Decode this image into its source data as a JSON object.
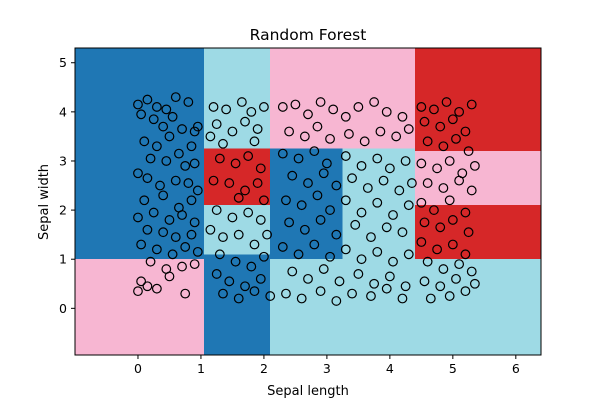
{
  "chart_data": {
    "type": "scatter",
    "title": "Random Forest",
    "xlabel": "Sepal length",
    "ylabel": "Sepal width",
    "xlim": [
      -1.0,
      6.4
    ],
    "ylim": [
      -0.95,
      5.3
    ],
    "xticks": [
      0,
      1,
      2,
      3,
      4,
      5,
      6
    ],
    "yticks": [
      0,
      1,
      2,
      3,
      4,
      5
    ],
    "grid": false,
    "legend": "none",
    "marker": "open-circle",
    "colors": {
      "blue": "#1f77b4",
      "cyan": "#9edae5",
      "pink": "#f7b6d2",
      "red": "#d62728",
      "marker_edge": "#000000"
    },
    "regions": [
      {
        "x": [
          -1.0,
          1.05
        ],
        "y": [
          1.0,
          5.3
        ],
        "color": "blue"
      },
      {
        "x": [
          -1.0,
          1.05
        ],
        "y": [
          -0.95,
          1.0
        ],
        "color": "pink"
      },
      {
        "x": [
          1.05,
          2.1
        ],
        "y": [
          3.25,
          5.3
        ],
        "color": "cyan"
      },
      {
        "x": [
          1.05,
          2.1
        ],
        "y": [
          2.1,
          3.25
        ],
        "color": "red"
      },
      {
        "x": [
          1.05,
          2.1
        ],
        "y": [
          1.1,
          2.1
        ],
        "color": "cyan"
      },
      {
        "x": [
          1.05,
          2.1
        ],
        "y": [
          -0.95,
          1.1
        ],
        "color": "blue"
      },
      {
        "x": [
          2.1,
          4.4
        ],
        "y": [
          3.25,
          5.3
        ],
        "color": "pink"
      },
      {
        "x": [
          2.1,
          3.25
        ],
        "y": [
          1.0,
          3.25
        ],
        "color": "blue"
      },
      {
        "x": [
          3.25,
          4.4
        ],
        "y": [
          1.0,
          3.25
        ],
        "color": "cyan"
      },
      {
        "x": [
          2.1,
          4.4
        ],
        "y": [
          -0.95,
          1.0
        ],
        "color": "cyan"
      },
      {
        "x": [
          4.4,
          6.4
        ],
        "y": [
          3.2,
          5.3
        ],
        "color": "red"
      },
      {
        "x": [
          4.4,
          6.4
        ],
        "y": [
          2.1,
          3.2
        ],
        "color": "pink"
      },
      {
        "x": [
          4.4,
          6.4
        ],
        "y": [
          1.0,
          2.1
        ],
        "color": "red"
      },
      {
        "x": [
          4.4,
          6.4
        ],
        "y": [
          -0.95,
          1.0
        ],
        "color": "cyan"
      }
    ],
    "points": [
      [
        0.0,
        4.15
      ],
      [
        0.15,
        4.25
      ],
      [
        0.3,
        4.1
      ],
      [
        0.45,
        4.05
      ],
      [
        0.6,
        4.3
      ],
      [
        0.8,
        4.2
      ],
      [
        0.05,
        3.95
      ],
      [
        0.25,
        3.85
      ],
      [
        0.4,
        3.7
      ],
      [
        0.55,
        3.9
      ],
      [
        0.7,
        3.65
      ],
      [
        0.9,
        3.6
      ],
      [
        0.1,
        3.4
      ],
      [
        0.3,
        3.3
      ],
      [
        0.5,
        3.5
      ],
      [
        0.65,
        3.15
      ],
      [
        0.85,
        3.3
      ],
      [
        0.95,
        3.7
      ],
      [
        0.2,
        3.05
      ],
      [
        0.45,
        3.0
      ],
      [
        0.75,
        2.9
      ],
      [
        0.9,
        2.95
      ],
      [
        0.0,
        2.75
      ],
      [
        0.15,
        2.65
      ],
      [
        0.35,
        2.5
      ],
      [
        0.6,
        2.6
      ],
      [
        0.8,
        2.55
      ],
      [
        0.95,
        2.4
      ],
      [
        0.1,
        2.2
      ],
      [
        0.4,
        2.3
      ],
      [
        0.65,
        2.05
      ],
      [
        0.85,
        2.2
      ],
      [
        0.0,
        1.85
      ],
      [
        0.25,
        1.95
      ],
      [
        0.5,
        1.8
      ],
      [
        0.7,
        1.9
      ],
      [
        0.9,
        1.75
      ],
      [
        0.15,
        1.6
      ],
      [
        0.4,
        1.55
      ],
      [
        0.6,
        1.45
      ],
      [
        0.85,
        1.5
      ],
      [
        0.05,
        1.3
      ],
      [
        0.3,
        1.2
      ],
      [
        0.55,
        1.1
      ],
      [
        0.75,
        1.25
      ],
      [
        0.95,
        1.15
      ],
      [
        0.2,
        0.95
      ],
      [
        0.45,
        0.8
      ],
      [
        0.7,
        0.85
      ],
      [
        0.9,
        0.9
      ],
      [
        0.05,
        0.55
      ],
      [
        0.3,
        0.4
      ],
      [
        0.5,
        0.65
      ],
      [
        0.75,
        0.3
      ],
      [
        0.0,
        0.35
      ],
      [
        0.15,
        0.45
      ],
      [
        1.2,
        4.1
      ],
      [
        1.4,
        4.05
      ],
      [
        1.65,
        4.2
      ],
      [
        1.8,
        4.0
      ],
      [
        2.0,
        4.1
      ],
      [
        1.25,
        3.75
      ],
      [
        1.5,
        3.6
      ],
      [
        1.7,
        3.8
      ],
      [
        1.9,
        3.65
      ],
      [
        1.15,
        3.5
      ],
      [
        1.35,
        3.35
      ],
      [
        1.85,
        3.4
      ],
      [
        1.3,
        3.05
      ],
      [
        1.55,
        2.95
      ],
      [
        1.75,
        3.1
      ],
      [
        1.95,
        2.85
      ],
      [
        1.2,
        2.6
      ],
      [
        1.45,
        2.55
      ],
      [
        1.7,
        2.4
      ],
      [
        1.9,
        2.55
      ],
      [
        1.6,
        2.25
      ],
      [
        2.0,
        2.2
      ],
      [
        1.25,
        2.0
      ],
      [
        1.5,
        1.85
      ],
      [
        1.75,
        1.95
      ],
      [
        1.95,
        1.8
      ],
      [
        1.15,
        1.6
      ],
      [
        1.35,
        1.45
      ],
      [
        1.6,
        1.5
      ],
      [
        1.85,
        1.3
      ],
      [
        2.05,
        1.5
      ],
      [
        1.3,
        1.1
      ],
      [
        1.55,
        0.95
      ],
      [
        1.8,
        0.85
      ],
      [
        2.0,
        1.05
      ],
      [
        1.25,
        0.7
      ],
      [
        1.45,
        0.55
      ],
      [
        1.7,
        0.45
      ],
      [
        1.95,
        0.6
      ],
      [
        1.35,
        0.3
      ],
      [
        1.6,
        0.2
      ],
      [
        1.85,
        0.35
      ],
      [
        2.1,
        0.25
      ],
      [
        2.3,
        4.1
      ],
      [
        2.5,
        4.15
      ],
      [
        2.7,
        3.95
      ],
      [
        2.9,
        4.2
      ],
      [
        3.1,
        4.05
      ],
      [
        3.3,
        3.9
      ],
      [
        3.5,
        4.1
      ],
      [
        3.75,
        4.2
      ],
      [
        3.95,
        4.0
      ],
      [
        4.2,
        3.9
      ],
      [
        2.4,
        3.6
      ],
      [
        2.65,
        3.5
      ],
      [
        2.85,
        3.7
      ],
      [
        3.05,
        3.45
      ],
      [
        3.35,
        3.55
      ],
      [
        3.6,
        3.4
      ],
      [
        3.85,
        3.6
      ],
      [
        4.1,
        3.5
      ],
      [
        4.3,
        3.65
      ],
      [
        2.3,
        3.15
      ],
      [
        2.55,
        3.05
      ],
      [
        2.8,
        3.2
      ],
      [
        3.0,
        2.95
      ],
      [
        3.3,
        3.1
      ],
      [
        3.55,
        2.9
      ],
      [
        3.8,
        3.05
      ],
      [
        4.0,
        2.85
      ],
      [
        4.25,
        3.0
      ],
      [
        2.45,
        2.7
      ],
      [
        2.7,
        2.55
      ],
      [
        2.95,
        2.75
      ],
      [
        3.15,
        2.5
      ],
      [
        3.4,
        2.65
      ],
      [
        3.65,
        2.45
      ],
      [
        3.9,
        2.6
      ],
      [
        4.15,
        2.4
      ],
      [
        4.35,
        2.55
      ],
      [
        2.35,
        2.2
      ],
      [
        2.6,
        2.1
      ],
      [
        2.85,
        2.3
      ],
      [
        3.05,
        2.0
      ],
      [
        3.3,
        2.2
      ],
      [
        3.55,
        1.95
      ],
      [
        3.8,
        2.15
      ],
      [
        4.05,
        1.9
      ],
      [
        4.3,
        2.1
      ],
      [
        2.4,
        1.75
      ],
      [
        2.65,
        1.6
      ],
      [
        2.9,
        1.8
      ],
      [
        3.15,
        1.5
      ],
      [
        3.45,
        1.7
      ],
      [
        3.7,
        1.45
      ],
      [
        3.95,
        1.65
      ],
      [
        4.2,
        1.55
      ],
      [
        2.3,
        1.25
      ],
      [
        2.55,
        1.1
      ],
      [
        2.8,
        1.3
      ],
      [
        3.05,
        1.05
      ],
      [
        3.3,
        1.2
      ],
      [
        3.55,
        1.0
      ],
      [
        3.8,
        1.15
      ],
      [
        4.05,
        0.95
      ],
      [
        4.3,
        1.1
      ],
      [
        2.45,
        0.75
      ],
      [
        2.7,
        0.6
      ],
      [
        2.95,
        0.8
      ],
      [
        3.2,
        0.55
      ],
      [
        3.5,
        0.7
      ],
      [
        3.75,
        0.5
      ],
      [
        4.0,
        0.65
      ],
      [
        4.25,
        0.45
      ],
      [
        2.35,
        0.3
      ],
      [
        2.6,
        0.2
      ],
      [
        2.9,
        0.35
      ],
      [
        3.15,
        0.15
      ],
      [
        3.4,
        0.3
      ],
      [
        3.7,
        0.25
      ],
      [
        3.95,
        0.4
      ],
      [
        4.2,
        0.2
      ],
      [
        4.5,
        4.1
      ],
      [
        4.7,
        4.05
      ],
      [
        4.9,
        4.2
      ],
      [
        5.1,
        4.0
      ],
      [
        5.3,
        4.15
      ],
      [
        4.55,
        3.8
      ],
      [
        4.8,
        3.7
      ],
      [
        5.0,
        3.85
      ],
      [
        5.2,
        3.6
      ],
      [
        4.6,
        3.4
      ],
      [
        4.85,
        3.3
      ],
      [
        5.05,
        3.45
      ],
      [
        5.25,
        3.2
      ],
      [
        4.5,
        2.95
      ],
      [
        4.75,
        2.85
      ],
      [
        4.95,
        3.0
      ],
      [
        5.15,
        2.75
      ],
      [
        5.35,
        2.9
      ],
      [
        4.6,
        2.55
      ],
      [
        4.85,
        2.45
      ],
      [
        5.1,
        2.6
      ],
      [
        5.3,
        2.4
      ],
      [
        4.5,
        2.15
      ],
      [
        4.7,
        2.0
      ],
      [
        4.95,
        2.2
      ],
      [
        5.2,
        1.95
      ],
      [
        4.55,
        1.75
      ],
      [
        4.8,
        1.65
      ],
      [
        5.0,
        1.8
      ],
      [
        5.25,
        1.55
      ],
      [
        4.5,
        1.35
      ],
      [
        4.75,
        1.2
      ],
      [
        5.0,
        1.3
      ],
      [
        5.2,
        1.1
      ],
      [
        4.6,
        0.95
      ],
      [
        4.85,
        0.8
      ],
      [
        5.1,
        0.9
      ],
      [
        5.3,
        0.75
      ],
      [
        4.55,
        0.55
      ],
      [
        4.8,
        0.45
      ],
      [
        5.05,
        0.6
      ],
      [
        5.2,
        0.35
      ],
      [
        4.65,
        0.2
      ],
      [
        4.95,
        0.25
      ],
      [
        5.35,
        0.5
      ]
    ]
  }
}
